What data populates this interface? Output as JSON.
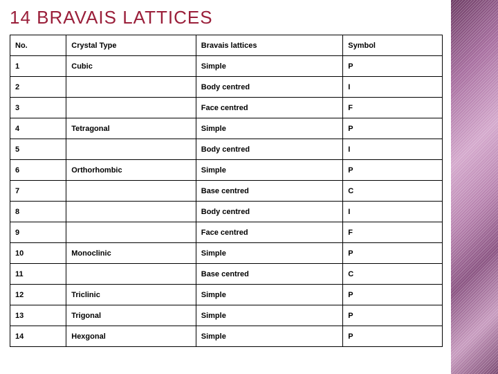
{
  "title": "14 BRAVAIS LATTICES",
  "title_color": "#9a1f3a",
  "title_fontsize": 26,
  "strip_gradient": [
    "#6b3a62",
    "#a86fa0",
    "#d4a8cc",
    "#b883af",
    "#8a5482",
    "#c79abe",
    "#7a4971"
  ],
  "background_color": "#ffffff",
  "table": {
    "type": "table",
    "border_color": "#000000",
    "cell_fontsize": 11,
    "cell_fontweight": "bold",
    "column_widths_pct": [
      13,
      30,
      34,
      23
    ],
    "columns": [
      "No.",
      "Crystal Type",
      "Bravais lattices",
      "Symbol"
    ],
    "rows": [
      [
        "1",
        "Cubic",
        "Simple",
        "P"
      ],
      [
        "2",
        "",
        "Body centred",
        "I"
      ],
      [
        "3",
        "",
        "Face centred",
        "F"
      ],
      [
        "4",
        "Tetragonal",
        "Simple",
        "P"
      ],
      [
        "5",
        "",
        "Body centred",
        "I"
      ],
      [
        "6",
        "Orthorhombic",
        "Simple",
        "P"
      ],
      [
        "7",
        "",
        "Base centred",
        "C"
      ],
      [
        "8",
        "",
        "Body centred",
        "I"
      ],
      [
        "9",
        "",
        "Face centred",
        "F"
      ],
      [
        "10",
        "Monoclinic",
        "Simple",
        "P"
      ],
      [
        "11",
        "",
        "Base centred",
        "C"
      ],
      [
        "12",
        "Triclinic",
        "Simple",
        "P"
      ],
      [
        "13",
        "Trigonal",
        "Simple",
        "P"
      ],
      [
        "14",
        "Hexgonal",
        "Simple",
        "P"
      ]
    ]
  }
}
